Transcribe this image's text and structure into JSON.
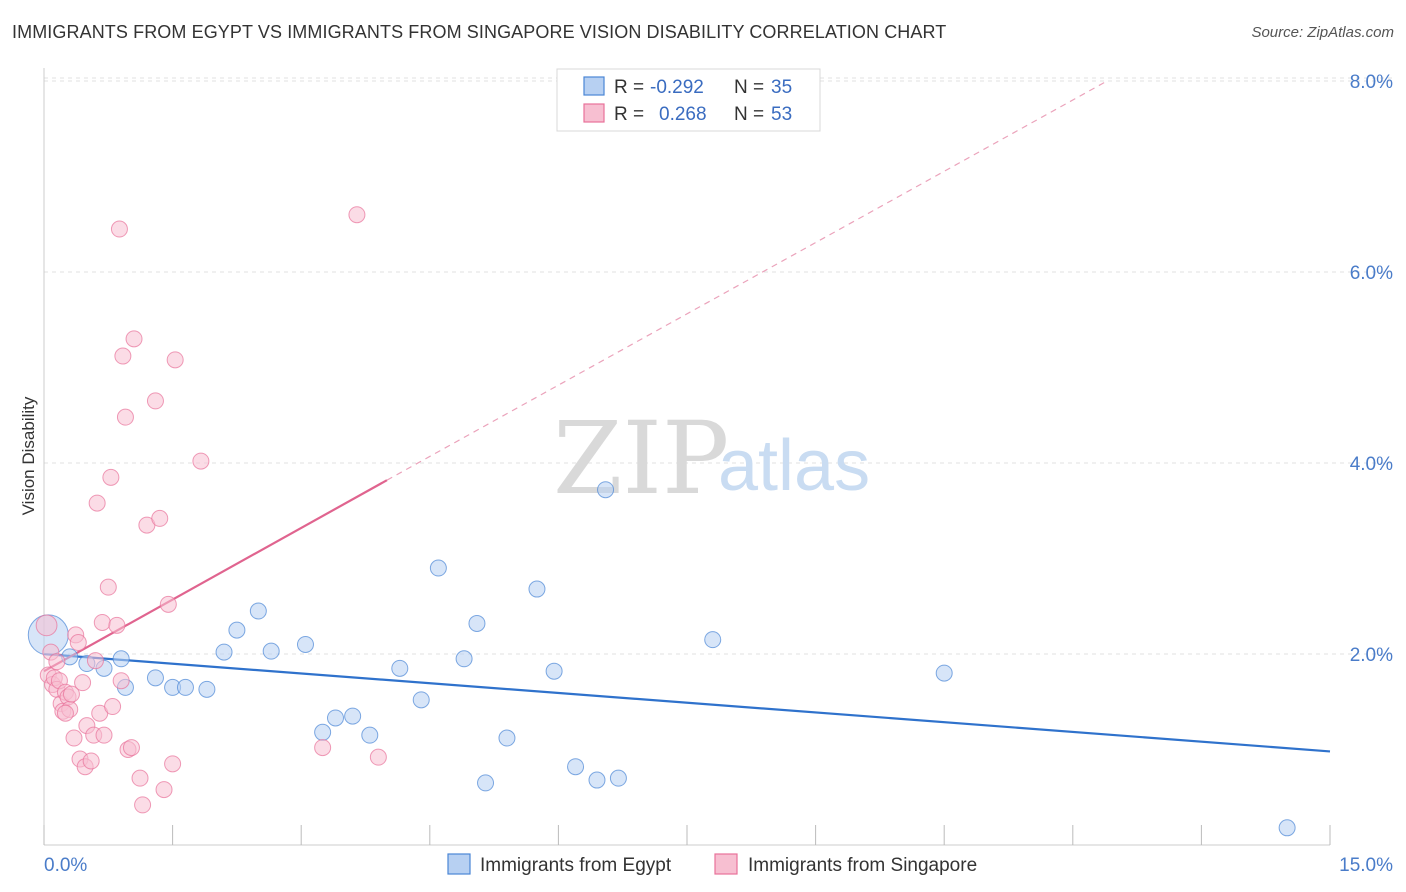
{
  "title": "IMMIGRANTS FROM EGYPT VS IMMIGRANTS FROM SINGAPORE VISION DISABILITY CORRELATION CHART",
  "source": "Source: ZipAtlas.com",
  "watermark": {
    "zip": "ZIP",
    "atlas": "atlas"
  },
  "colors": {
    "egypt": "#4a86d6",
    "egypt_fill": "#b7d0f2",
    "singapore": "#e8729a",
    "singapore_fill": "#f7bfd1",
    "tick_text": "#4a7cc9",
    "grid": "#e2e2e2"
  },
  "legend": {
    "egypt": {
      "r_label": "R = ",
      "r_value": "-0.292",
      "n_label": "N = ",
      "n_value": "35"
    },
    "singapore": {
      "r_label": "R = ",
      "r_value": "0.268",
      "n_label": "N = ",
      "n_value": "53"
    }
  },
  "chart_data": {
    "type": "scatter",
    "title": "IMMIGRANTS FROM EGYPT VS IMMIGRANTS FROM SINGAPORE VISION DISABILITY CORRELATION CHART",
    "xlabel": "",
    "ylabel": "Vision Disability",
    "xlim": [
      0,
      15
    ],
    "ylim": [
      0,
      8.5
    ],
    "x_tick_labels": [
      {
        "value": 0,
        "label": "0.0%"
      },
      {
        "value": 15,
        "label": "15.0%"
      }
    ],
    "y_tick_labels": [
      {
        "value": 2,
        "label": "2.0%"
      },
      {
        "value": 4,
        "label": "4.0%"
      },
      {
        "value": 6,
        "label": "6.0%"
      },
      {
        "value": 8,
        "label": "8.0%"
      }
    ],
    "legend_position": "top-center",
    "series": [
      {
        "name": "Immigrants from Egypt",
        "key": "egypt",
        "r": -0.292,
        "n": 35,
        "trend": {
          "x": [
            0,
            15
          ],
          "y": [
            2.0,
            0.98
          ],
          "dashed_extension": false
        },
        "points": [
          [
            0.05,
            2.2,
            2.5
          ],
          [
            0.3,
            1.97,
            1
          ],
          [
            0.5,
            1.9,
            1
          ],
          [
            0.7,
            1.85,
            1
          ],
          [
            0.9,
            1.95,
            1
          ],
          [
            0.95,
            1.65,
            1
          ],
          [
            1.3,
            1.75,
            1
          ],
          [
            1.5,
            1.65,
            1
          ],
          [
            1.65,
            1.65,
            1
          ],
          [
            1.9,
            1.63,
            1
          ],
          [
            2.1,
            2.02,
            1
          ],
          [
            2.25,
            2.25,
            1
          ],
          [
            2.5,
            2.45,
            1
          ],
          [
            2.65,
            2.03,
            1
          ],
          [
            3.05,
            2.1,
            1
          ],
          [
            3.25,
            1.18,
            1
          ],
          [
            3.4,
            1.33,
            1
          ],
          [
            3.6,
            1.35,
            1
          ],
          [
            3.8,
            1.15,
            1
          ],
          [
            4.15,
            1.85,
            1
          ],
          [
            4.4,
            1.52,
            1
          ],
          [
            4.6,
            2.9,
            1
          ],
          [
            4.9,
            1.95,
            1
          ],
          [
            5.05,
            2.32,
            1
          ],
          [
            5.15,
            0.65,
            1
          ],
          [
            5.4,
            1.12,
            1
          ],
          [
            5.75,
            2.68,
            1
          ],
          [
            5.95,
            1.82,
            1
          ],
          [
            6.2,
            0.82,
            1
          ],
          [
            6.45,
            0.68,
            1
          ],
          [
            6.55,
            3.72,
            1
          ],
          [
            6.7,
            0.7,
            1
          ],
          [
            7.8,
            2.15,
            1
          ],
          [
            10.5,
            1.8,
            1
          ],
          [
            14.5,
            0.18,
            1
          ]
        ]
      },
      {
        "name": "Immigrants from Singapore",
        "key": "singapore",
        "r": 0.268,
        "n": 53,
        "trend": {
          "x": [
            0,
            4.0
          ],
          "y": [
            1.82,
            3.82
          ],
          "extension": {
            "x": [
              4.0,
              12.4
            ],
            "y": [
              3.82,
              8.0
            ]
          }
        },
        "points": [
          [
            0.03,
            2.3,
            1.3
          ],
          [
            0.05,
            1.78,
            1
          ],
          [
            0.08,
            2.02,
            1
          ],
          [
            0.1,
            1.68,
            1
          ],
          [
            0.12,
            1.75,
            1
          ],
          [
            0.15,
            1.63,
            1
          ],
          [
            0.18,
            1.72,
            1
          ],
          [
            0.2,
            1.48,
            1
          ],
          [
            0.22,
            1.4,
            1
          ],
          [
            0.25,
            1.6,
            1
          ],
          [
            0.28,
            1.55,
            1
          ],
          [
            0.3,
            1.42,
            1
          ],
          [
            0.32,
            1.58,
            1
          ],
          [
            0.35,
            1.12,
            1
          ],
          [
            0.37,
            2.2,
            1
          ],
          [
            0.4,
            2.12,
            1
          ],
          [
            0.42,
            0.9,
            1
          ],
          [
            0.45,
            1.7,
            1
          ],
          [
            0.48,
            0.82,
            1
          ],
          [
            0.5,
            1.25,
            1
          ],
          [
            0.55,
            0.88,
            1
          ],
          [
            0.58,
            1.15,
            1
          ],
          [
            0.6,
            1.93,
            1
          ],
          [
            0.62,
            3.58,
            1
          ],
          [
            0.65,
            1.38,
            1
          ],
          [
            0.68,
            2.33,
            1
          ],
          [
            0.7,
            1.15,
            1
          ],
          [
            0.75,
            2.7,
            1
          ],
          [
            0.78,
            3.85,
            1
          ],
          [
            0.8,
            1.45,
            1
          ],
          [
            0.85,
            2.3,
            1
          ],
          [
            0.88,
            6.45,
            1
          ],
          [
            0.9,
            1.72,
            1
          ],
          [
            0.92,
            5.12,
            1
          ],
          [
            0.95,
            4.48,
            1
          ],
          [
            0.98,
            1.0,
            1
          ],
          [
            1.02,
            1.02,
            1
          ],
          [
            1.05,
            5.3,
            1
          ],
          [
            1.12,
            0.7,
            1
          ],
          [
            1.15,
            0.42,
            1
          ],
          [
            1.2,
            3.35,
            1
          ],
          [
            1.3,
            4.65,
            1
          ],
          [
            1.35,
            3.42,
            1
          ],
          [
            1.4,
            0.58,
            1
          ],
          [
            1.45,
            2.52,
            1
          ],
          [
            1.5,
            0.85,
            1
          ],
          [
            1.53,
            5.08,
            1
          ],
          [
            1.83,
            4.02,
            1
          ],
          [
            3.25,
            1.02,
            1
          ],
          [
            3.65,
            6.6,
            1
          ],
          [
            3.9,
            0.92,
            1
          ],
          [
            0.15,
            1.92,
            1
          ],
          [
            0.25,
            1.38,
            1
          ]
        ]
      }
    ]
  },
  "bottom_legend": {
    "egypt_label": "Immigrants from Egypt",
    "singapore_label": "Immigrants from Singapore"
  }
}
